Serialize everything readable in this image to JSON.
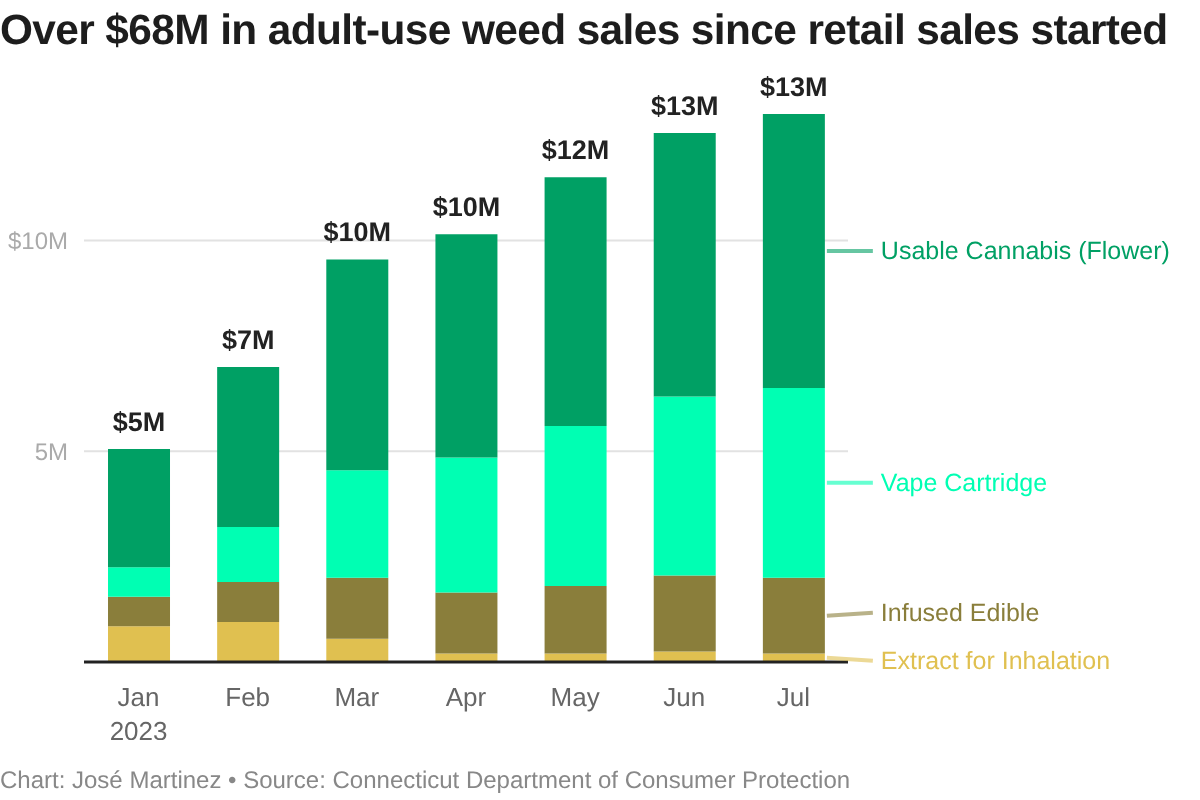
{
  "chart_data": {
    "type": "bar",
    "title": "Over $68M in adult-use weed sales since retail sales started",
    "categories": [
      "Jan 2023",
      "Feb",
      "Mar",
      "Apr",
      "May",
      "Jun",
      "Jul"
    ],
    "series": [
      {
        "name": "Extract for Inhalation",
        "color": "#e0c050",
        "values": [
          0.85,
          0.95,
          0.55,
          0.2,
          0.2,
          0.25,
          0.2
        ]
      },
      {
        "name": "Infused Edible",
        "color": "#8a7e3b",
        "values": [
          0.7,
          0.95,
          1.45,
          1.45,
          1.6,
          1.8,
          1.8
        ]
      },
      {
        "name": "Vape Cartridge",
        "color": "#00ffb3",
        "values": [
          0.7,
          1.3,
          2.55,
          3.2,
          3.8,
          4.25,
          4.5
        ]
      },
      {
        "name": "Usable Cannabis (Flower)",
        "color": "#00a064",
        "values": [
          2.8,
          3.8,
          5.0,
          5.3,
          5.9,
          6.25,
          6.5
        ]
      }
    ],
    "stacked": true,
    "ylim": [
      0,
      13
    ],
    "yticks": [
      {
        "value": 0,
        "label": null
      },
      {
        "value": 5,
        "label": "5M"
      },
      {
        "value": 10,
        "label": "$10M"
      }
    ],
    "grid": "y",
    "legend": "right",
    "totals": [
      "$5M",
      "$7M",
      "$10M",
      "$10M",
      "$12M",
      "$13M",
      "$13M"
    ],
    "annotations": [
      "Chart: José Martinez • Source: Connecticut Department of Consumer Protection"
    ]
  }
}
